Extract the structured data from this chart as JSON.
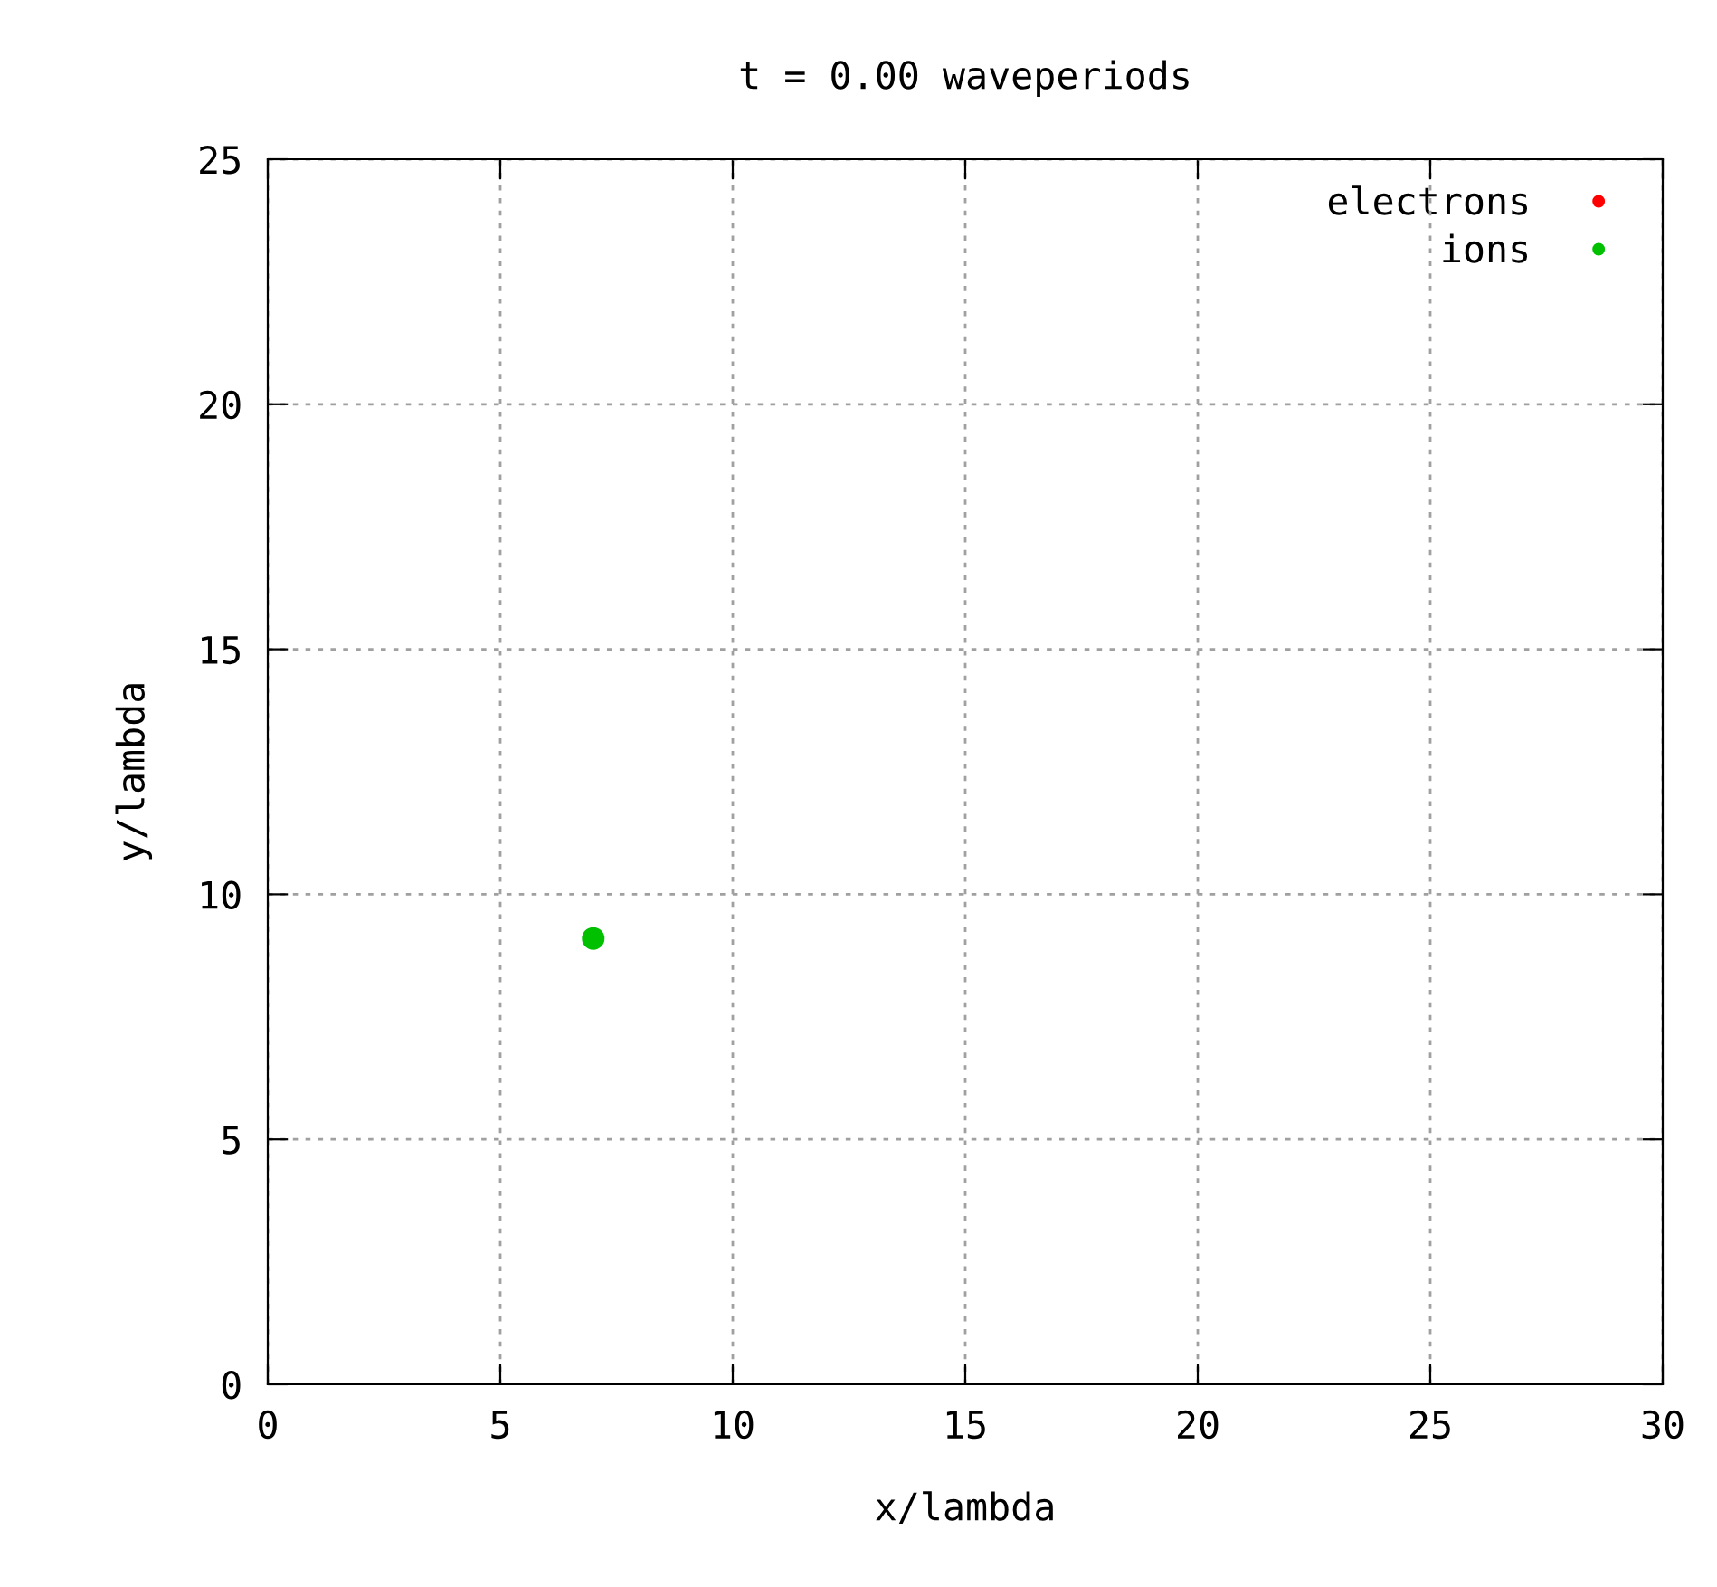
{
  "chart_data": {
    "type": "scatter",
    "title": "t = 0.00 waveperiods",
    "xlabel": "x/lambda",
    "ylabel": "y/lambda",
    "xlim": [
      0,
      30
    ],
    "xticks": [
      0,
      5,
      10,
      15,
      20,
      25,
      30
    ],
    "ylim": [
      0,
      25
    ],
    "yticks": [
      0,
      5,
      10,
      15,
      20,
      25
    ],
    "grid": true,
    "legend": "top right",
    "marker": "circle",
    "series": [
      {
        "name": "electrons",
        "color": "#ff0000",
        "x": [
          null
        ],
        "values": [
          null
        ]
      },
      {
        "name": "ions",
        "color": "#00c000",
        "x": [
          7.0
        ],
        "values": [
          9.1
        ]
      }
    ]
  }
}
